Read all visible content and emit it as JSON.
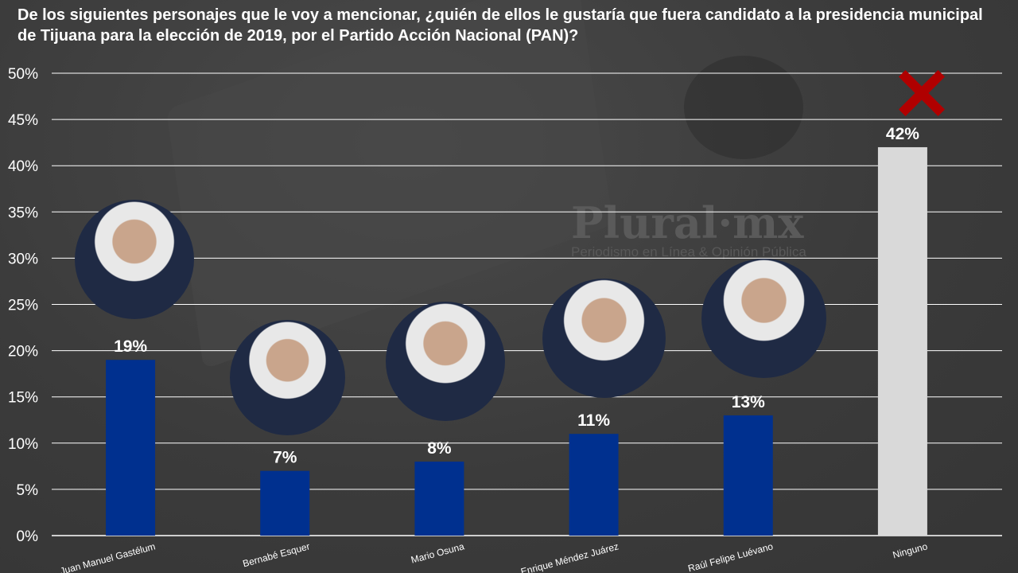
{
  "watermark": {
    "logo": "Plural·mx",
    "tagline": "Periodismo en Línea & Opinión Pública"
  },
  "colors": {
    "candidate": "#00308f",
    "none": "#d9d9d9",
    "grid": "#ffffff",
    "cross": "#b00000"
  },
  "chart_data": {
    "type": "bar",
    "title": "De los siguientes personajes que le voy a mencionar, ¿quién de ellos le gustaría que fuera candidato a la presidencia municipal de Tijuana para la elección de 2019, por el Partido Acción Nacional (PAN)?",
    "categories": [
      "Juan Manuel Gastélum",
      "Bernabé Esquer",
      "Mario Osuna",
      "Enrique Méndez Juárez",
      "Raúl Felipe Luévano",
      "Ninguno"
    ],
    "values": [
      19,
      7,
      8,
      11,
      13,
      42
    ],
    "data_labels": [
      "19%",
      "7%",
      "8%",
      "11%",
      "13%",
      "42%"
    ],
    "yticks": [
      "0%",
      "5%",
      "10%",
      "15%",
      "20%",
      "25%",
      "30%",
      "35%",
      "40%",
      "45%",
      "50%"
    ],
    "ylim": [
      0,
      50
    ],
    "grid": true,
    "xlabel": "",
    "ylabel": ""
  }
}
